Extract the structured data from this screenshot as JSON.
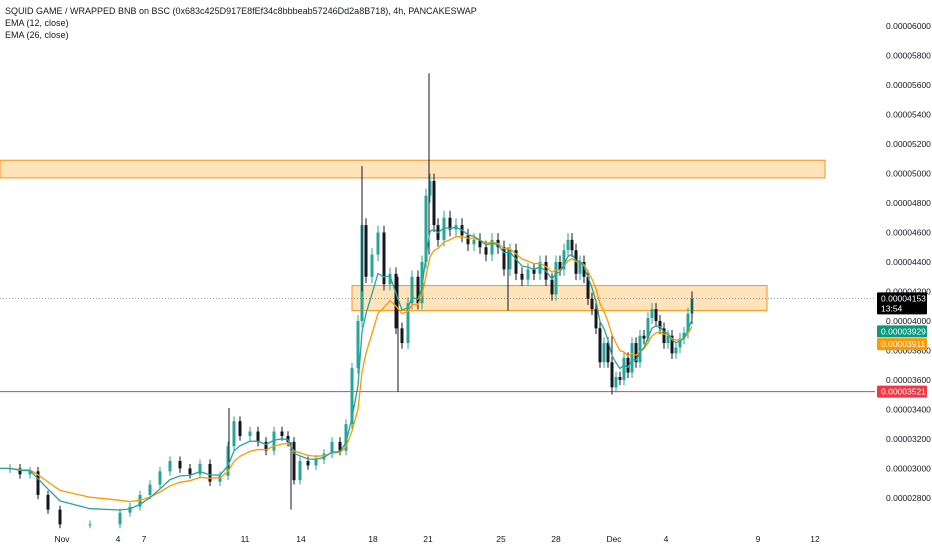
{
  "legend": {
    "title": "SQUID GAME / WRAPPED BNB on BSC (0x683c425D917E8fEf34c8bbbeab57246Dd2a8B718), 4h, PANCAKESWAP",
    "ema12": "EMA (12, close)",
    "ema26": "EMA (26, close)"
  },
  "colors": {
    "up": "#26a69a",
    "down": "#131722",
    "ema12": "#26a69a",
    "ema26": "#ff9800",
    "zone_fill": "#ffd9a3",
    "zone_border": "#f7931a",
    "support": "#f23645",
    "price_tag": "#000000",
    "ema12_tag": "#089981",
    "ema26_tag": "#ff9800",
    "support_tag": "#f23645"
  },
  "chart_data": {
    "type": "candlestick",
    "y_axis": {
      "ticks": [
        "0.00006000",
        "0.00005800",
        "0.00005600",
        "0.00005400",
        "0.00005200",
        "0.00005000",
        "0.00004800",
        "0.00004600",
        "0.00004400",
        "0.00004200",
        "0.00004000",
        "0.00003800",
        "0.00003600",
        "0.00003400",
        "0.00003200",
        "0.00003000",
        "0.00002800"
      ],
      "range": [
        2.65e-05,
        6.07e-05
      ]
    },
    "x_axis": {
      "ticks": [
        "Nov",
        "4",
        "7",
        "11",
        "14",
        "18",
        "21",
        "25",
        "28",
        "Dec",
        "4",
        "9",
        "12"
      ]
    },
    "resistance_zones": [
      {
        "low": 4.97e-05,
        "high": 5.09e-05
      },
      {
        "low": 4.07e-05,
        "high": 4.24e-05
      }
    ],
    "support_level": 3.521e-05,
    "last_price": {
      "value": "0.00004153",
      "countdown": "13:54"
    },
    "ema12_last": "0.00003929",
    "ema26_last": "0.00003911",
    "support_label": "0.00003521",
    "price_path": [
      [
        0,
        3e-05
      ],
      [
        10,
        3e-05
      ],
      [
        20,
        2.96e-05
      ],
      [
        30,
        2.98e-05
      ],
      [
        38,
        2.82e-05
      ],
      [
        48,
        2.72e-05
      ],
      [
        60,
        2.62e-05
      ],
      [
        90,
        2.62e-05
      ],
      [
        120,
        2.7e-05
      ],
      [
        130,
        2.74e-05
      ],
      [
        140,
        2.82e-05
      ],
      [
        150,
        2.89e-05
      ],
      [
        160,
        2.98e-05
      ],
      [
        170,
        3.05e-05
      ],
      [
        180,
        3e-05
      ],
      [
        190,
        2.96e-05
      ],
      [
        200,
        3.03e-05
      ],
      [
        210,
        2.91e-05
      ],
      [
        220,
        2.95e-05
      ],
      [
        228,
        3.15e-05
      ],
      [
        234,
        3.32e-05
      ],
      [
        240,
        3.22e-05
      ],
      [
        250,
        3.25e-05
      ],
      [
        258,
        3.18e-05
      ],
      [
        266,
        3.12e-05
      ],
      [
        274,
        3.25e-05
      ],
      [
        282,
        3.22e-05
      ],
      [
        288,
        3.18e-05
      ],
      [
        294,
        2.92e-05
      ],
      [
        300,
        3.05e-05
      ],
      [
        308,
        3.02e-05
      ],
      [
        316,
        3.06e-05
      ],
      [
        324,
        3.1e-05
      ],
      [
        332,
        3.18e-05
      ],
      [
        340,
        3.12e-05
      ],
      [
        346,
        3.3e-05
      ],
      [
        352,
        3.68e-05
      ],
      [
        358,
        4e-05
      ],
      [
        362,
        4.65e-05
      ],
      [
        366,
        4.3e-05
      ],
      [
        372,
        4.45e-05
      ],
      [
        378,
        4.6e-05
      ],
      [
        384,
        4.25e-05
      ],
      [
        390,
        4.32e-05
      ],
      [
        396,
        3.95e-05
      ],
      [
        402,
        3.85e-05
      ],
      [
        408,
        4.12e-05
      ],
      [
        412,
        4.3e-05
      ],
      [
        418,
        4.12e-05
      ],
      [
        422,
        4.4e-05
      ],
      [
        426,
        4.85e-05
      ],
      [
        430,
        4.95e-05
      ],
      [
        434,
        4.65e-05
      ],
      [
        438,
        4.55e-05
      ],
      [
        444,
        4.7e-05
      ],
      [
        450,
        4.62e-05
      ],
      [
        456,
        4.65e-05
      ],
      [
        462,
        4.58e-05
      ],
      [
        468,
        4.52e-05
      ],
      [
        474,
        4.55e-05
      ],
      [
        480,
        4.5e-05
      ],
      [
        486,
        4.45e-05
      ],
      [
        492,
        4.55e-05
      ],
      [
        498,
        4.5e-05
      ],
      [
        504,
        4.35e-05
      ],
      [
        510,
        4.48e-05
      ],
      [
        516,
        4.32e-05
      ],
      [
        522,
        4.28e-05
      ],
      [
        528,
        4.35e-05
      ],
      [
        534,
        4.32e-05
      ],
      [
        540,
        4.4e-05
      ],
      [
        546,
        4.28e-05
      ],
      [
        552,
        4.18e-05
      ],
      [
        556,
        4.4e-05
      ],
      [
        560,
        4.35e-05
      ],
      [
        564,
        4.48e-05
      ],
      [
        568,
        4.55e-05
      ],
      [
        572,
        4.48e-05
      ],
      [
        576,
        4.32e-05
      ],
      [
        580,
        4.4e-05
      ],
      [
        584,
        4.3e-05
      ],
      [
        588,
        4.15e-05
      ],
      [
        592,
        4.08e-05
      ],
      [
        596,
        3.95e-05
      ],
      [
        600,
        3.72e-05
      ],
      [
        604,
        3.85e-05
      ],
      [
        608,
        3.72e-05
      ],
      [
        612,
        3.55e-05
      ],
      [
        616,
        3.62e-05
      ],
      [
        620,
        3.6e-05
      ],
      [
        624,
        3.75e-05
      ],
      [
        628,
        3.65e-05
      ],
      [
        632,
        3.85e-05
      ],
      [
        636,
        3.72e-05
      ],
      [
        640,
        3.9e-05
      ],
      [
        644,
        3.88e-05
      ],
      [
        648,
        4.02e-05
      ],
      [
        652,
        4.08e-05
      ],
      [
        656,
        4e-05
      ],
      [
        660,
        3.95e-05
      ],
      [
        664,
        3.85e-05
      ],
      [
        668,
        3.9e-05
      ],
      [
        672,
        3.78e-05
      ],
      [
        676,
        3.82e-05
      ],
      [
        680,
        3.88e-05
      ],
      [
        684,
        3.92e-05
      ],
      [
        688,
        4.05e-05
      ],
      [
        692,
        4.15e-05
      ]
    ],
    "wicks": [
      {
        "x": 429,
        "high": 5.68e-05,
        "low": 4.45e-05
      },
      {
        "x": 362,
        "high": 5.05e-05,
        "low": 4.2e-05
      },
      {
        "x": 398,
        "high": 4.3e-05,
        "low": 3.52e-05
      },
      {
        "x": 508,
        "high": 4.5e-05,
        "low": 4.07e-05
      },
      {
        "x": 612,
        "high": 3.9e-05,
        "low": 3.5e-05
      },
      {
        "x": 229,
        "high": 3.41e-05,
        "low": 3e-05
      },
      {
        "x": 291,
        "high": 3.18e-05,
        "low": 2.72e-05
      },
      {
        "x": 692,
        "high": 4.2e-05,
        "low": 3.98e-05
      }
    ]
  }
}
